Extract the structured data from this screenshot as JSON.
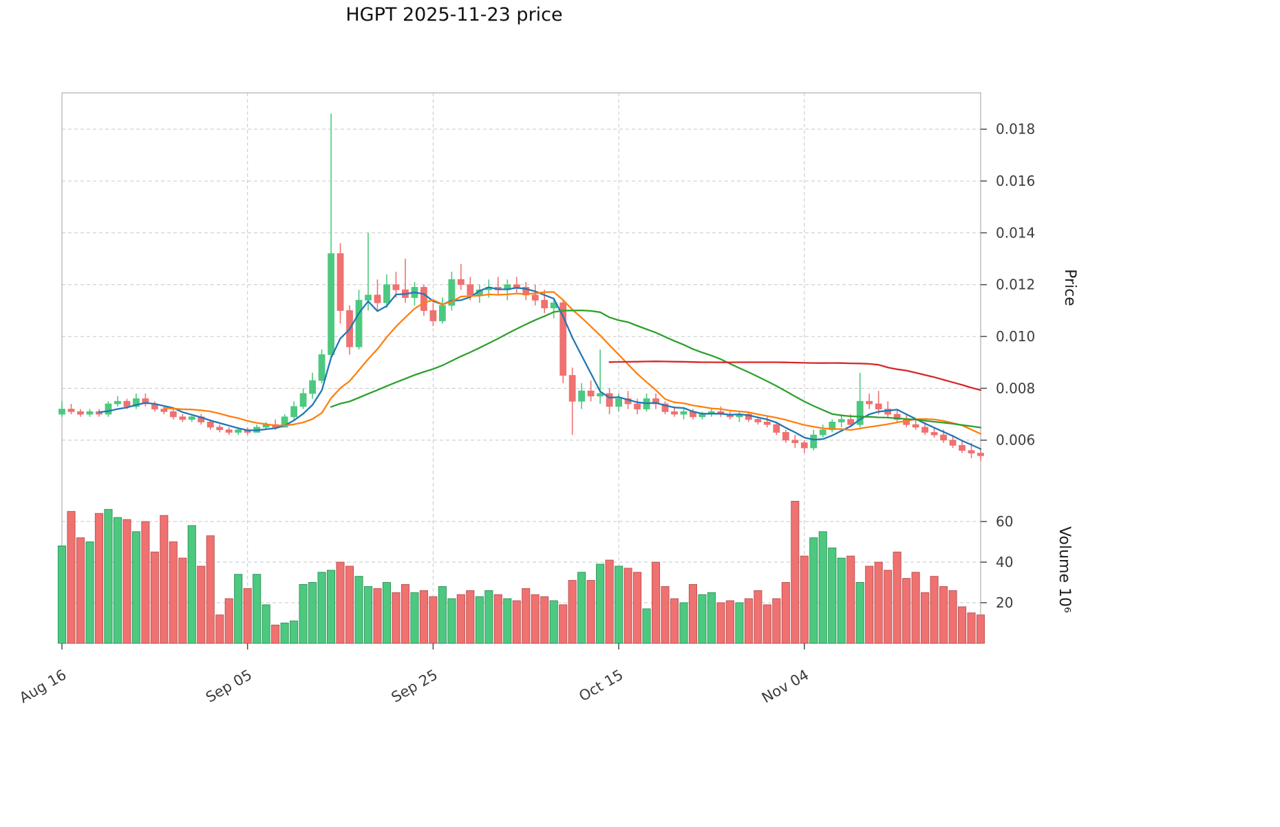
{
  "chart_data": {
    "type": "candlestick",
    "title": "HGPT  2025-11-23  price",
    "legend_position": "none",
    "grid": true,
    "x_axis": {
      "tick_labels": [
        "Aug 16",
        "Sep 05",
        "Sep 25",
        "Oct 15",
        "Nov 04"
      ],
      "tick_indices": [
        0,
        20,
        40,
        60,
        80
      ]
    },
    "y_axis_price": {
      "label": "Price",
      "ticks": [
        0.006,
        0.008,
        0.01,
        0.012,
        0.014,
        0.016,
        0.018
      ],
      "range": [
        0.0044,
        0.0194
      ]
    },
    "y_axis_volume": {
      "label": "Volume  10⁶",
      "ticks": [
        20,
        40,
        60
      ],
      "range": [
        0,
        76
      ]
    },
    "colors": {
      "up": "#4cc97f",
      "down": "#ef7170",
      "up_edge": "#2f8f5b",
      "down_edge": "#b85252",
      "ma_short": "#1f77b4",
      "ma_mid": "#ff7f0e",
      "ma_long": "#2ca02c",
      "ma_longest": "#d62728"
    },
    "moving_averages": [
      {
        "window": 5,
        "color": "#1f77b4"
      },
      {
        "window": 12,
        "color": "#ff7f0e"
      },
      {
        "window": 30,
        "color": "#2ca02c"
      },
      {
        "window": 60,
        "color": "#d62728"
      }
    ],
    "ohlc": [
      [
        0.007,
        0.0075,
        0.0069,
        0.0072
      ],
      [
        0.0072,
        0.0074,
        0.007,
        0.0071
      ],
      [
        0.0071,
        0.0072,
        0.0069,
        0.007
      ],
      [
        0.007,
        0.0072,
        0.0069,
        0.0071
      ],
      [
        0.0071,
        0.0072,
        0.0069,
        0.007
      ],
      [
        0.007,
        0.0075,
        0.0069,
        0.0074
      ],
      [
        0.0074,
        0.0077,
        0.0073,
        0.0075
      ],
      [
        0.0075,
        0.0076,
        0.0072,
        0.0073
      ],
      [
        0.0073,
        0.0078,
        0.0072,
        0.0076
      ],
      [
        0.0076,
        0.0078,
        0.0073,
        0.0074
      ],
      [
        0.0074,
        0.0075,
        0.0071,
        0.0072
      ],
      [
        0.0072,
        0.0073,
        0.007,
        0.0071
      ],
      [
        0.0071,
        0.0072,
        0.0068,
        0.0069
      ],
      [
        0.0069,
        0.007,
        0.0067,
        0.0068
      ],
      [
        0.0068,
        0.007,
        0.0067,
        0.0069
      ],
      [
        0.0069,
        0.007,
        0.0066,
        0.0067
      ],
      [
        0.0067,
        0.0068,
        0.0064,
        0.0065
      ],
      [
        0.0065,
        0.0066,
        0.0063,
        0.0064
      ],
      [
        0.0064,
        0.0065,
        0.0062,
        0.0063
      ],
      [
        0.0063,
        0.0065,
        0.0062,
        0.0064
      ],
      [
        0.0064,
        0.0065,
        0.0062,
        0.0063
      ],
      [
        0.0063,
        0.0066,
        0.0063,
        0.0065
      ],
      [
        0.0065,
        0.0067,
        0.0064,
        0.0066
      ],
      [
        0.0066,
        0.0068,
        0.0064,
        0.0065
      ],
      [
        0.0065,
        0.007,
        0.0065,
        0.0069
      ],
      [
        0.0069,
        0.0075,
        0.0068,
        0.0073
      ],
      [
        0.0073,
        0.008,
        0.0072,
        0.0078
      ],
      [
        0.0078,
        0.0086,
        0.0076,
        0.0083
      ],
      [
        0.0083,
        0.0095,
        0.0082,
        0.0093
      ],
      [
        0.0093,
        0.0186,
        0.0092,
        0.0132
      ],
      [
        0.0132,
        0.0136,
        0.0105,
        0.011
      ],
      [
        0.011,
        0.0112,
        0.0093,
        0.0096
      ],
      [
        0.0096,
        0.0118,
        0.0095,
        0.0114
      ],
      [
        0.0114,
        0.014,
        0.011,
        0.0116
      ],
      [
        0.0116,
        0.0122,
        0.011,
        0.0113
      ],
      [
        0.0113,
        0.0124,
        0.0111,
        0.012
      ],
      [
        0.012,
        0.0125,
        0.0115,
        0.0118
      ],
      [
        0.0118,
        0.013,
        0.0113,
        0.0115
      ],
      [
        0.0115,
        0.0121,
        0.0112,
        0.0119
      ],
      [
        0.0119,
        0.012,
        0.0108,
        0.011
      ],
      [
        0.011,
        0.0113,
        0.0104,
        0.0106
      ],
      [
        0.0106,
        0.0115,
        0.0105,
        0.0112
      ],
      [
        0.0112,
        0.0125,
        0.011,
        0.0122
      ],
      [
        0.0122,
        0.0128,
        0.0118,
        0.012
      ],
      [
        0.012,
        0.0123,
        0.0114,
        0.0116
      ],
      [
        0.0116,
        0.012,
        0.0113,
        0.0118
      ],
      [
        0.0118,
        0.0122,
        0.0115,
        0.0119
      ],
      [
        0.0119,
        0.0123,
        0.0116,
        0.0118
      ],
      [
        0.0118,
        0.0122,
        0.0114,
        0.012
      ],
      [
        0.012,
        0.0123,
        0.0117,
        0.0119
      ],
      [
        0.0119,
        0.0121,
        0.0114,
        0.0116
      ],
      [
        0.0116,
        0.012,
        0.0112,
        0.0114
      ],
      [
        0.0114,
        0.0118,
        0.0109,
        0.0111
      ],
      [
        0.0111,
        0.0115,
        0.0107,
        0.0113
      ],
      [
        0.0113,
        0.0114,
        0.0082,
        0.0085
      ],
      [
        0.0085,
        0.0088,
        0.0062,
        0.0075
      ],
      [
        0.0075,
        0.0082,
        0.0072,
        0.0079
      ],
      [
        0.0079,
        0.0083,
        0.0075,
        0.0077
      ],
      [
        0.0077,
        0.0095,
        0.0074,
        0.0078
      ],
      [
        0.0078,
        0.008,
        0.007,
        0.0073
      ],
      [
        0.0073,
        0.0078,
        0.0071,
        0.0076
      ],
      [
        0.0076,
        0.0079,
        0.0072,
        0.0074
      ],
      [
        0.0074,
        0.0076,
        0.007,
        0.0072
      ],
      [
        0.0072,
        0.0078,
        0.0071,
        0.0076
      ],
      [
        0.0076,
        0.0078,
        0.0072,
        0.0074
      ],
      [
        0.0074,
        0.0075,
        0.007,
        0.0071
      ],
      [
        0.0071,
        0.0073,
        0.0069,
        0.007
      ],
      [
        0.007,
        0.0072,
        0.0068,
        0.0071
      ],
      [
        0.0071,
        0.0072,
        0.0068,
        0.0069
      ],
      [
        0.0069,
        0.0071,
        0.0068,
        0.007
      ],
      [
        0.007,
        0.0072,
        0.0069,
        0.0071
      ],
      [
        0.0071,
        0.0073,
        0.0069,
        0.007
      ],
      [
        0.007,
        0.0071,
        0.0068,
        0.0069
      ],
      [
        0.0069,
        0.0071,
        0.0067,
        0.007
      ],
      [
        0.007,
        0.0071,
        0.0067,
        0.0068
      ],
      [
        0.0068,
        0.0069,
        0.0066,
        0.0067
      ],
      [
        0.0067,
        0.0069,
        0.0065,
        0.0066
      ],
      [
        0.0066,
        0.0067,
        0.0062,
        0.0063
      ],
      [
        0.0063,
        0.0064,
        0.0059,
        0.006
      ],
      [
        0.006,
        0.0062,
        0.0057,
        0.0059
      ],
      [
        0.0059,
        0.006,
        0.0055,
        0.0057
      ],
      [
        0.0057,
        0.0064,
        0.0056,
        0.0062
      ],
      [
        0.0062,
        0.0066,
        0.0061,
        0.0064
      ],
      [
        0.0064,
        0.0068,
        0.0063,
        0.0067
      ],
      [
        0.0067,
        0.007,
        0.0065,
        0.0068
      ],
      [
        0.0068,
        0.007,
        0.0065,
        0.0066
      ],
      [
        0.0066,
        0.0086,
        0.0065,
        0.0075
      ],
      [
        0.0075,
        0.0078,
        0.0072,
        0.0074
      ],
      [
        0.0074,
        0.0079,
        0.007,
        0.0072
      ],
      [
        0.0072,
        0.0075,
        0.0069,
        0.007
      ],
      [
        0.007,
        0.0072,
        0.0067,
        0.0068
      ],
      [
        0.0068,
        0.007,
        0.0065,
        0.0066
      ],
      [
        0.0066,
        0.0068,
        0.0064,
        0.0065
      ],
      [
        0.0065,
        0.0067,
        0.0062,
        0.0063
      ],
      [
        0.0063,
        0.0065,
        0.0061,
        0.0062
      ],
      [
        0.0062,
        0.0064,
        0.0059,
        0.006
      ],
      [
        0.006,
        0.0062,
        0.0057,
        0.0058
      ],
      [
        0.0058,
        0.006,
        0.0055,
        0.0056
      ],
      [
        0.0056,
        0.0059,
        0.0053,
        0.0055
      ],
      [
        0.0055,
        0.0057,
        0.0052,
        0.0054
      ]
    ],
    "volume": [
      48,
      65,
      52,
      50,
      64,
      66,
      62,
      61,
      55,
      60,
      45,
      63,
      50,
      42,
      58,
      38,
      53,
      14,
      22,
      34,
      27,
      34,
      19,
      9,
      10,
      11,
      29,
      30,
      35,
      36,
      40,
      38,
      33,
      28,
      27,
      30,
      25,
      29,
      25,
      26,
      23,
      28,
      22,
      24,
      26,
      23,
      26,
      24,
      22,
      21,
      27,
      24,
      23,
      21,
      19,
      31,
      35,
      31,
      39,
      41,
      38,
      37,
      35,
      17,
      40,
      28,
      22,
      20,
      29,
      24,
      25,
      20,
      21,
      20,
      22,
      26,
      19,
      22,
      30,
      70,
      43,
      52,
      55,
      47,
      42,
      43,
      30,
      38,
      40,
      36,
      45,
      32,
      35,
      25,
      33,
      28,
      26,
      18,
      15,
      14
    ]
  }
}
